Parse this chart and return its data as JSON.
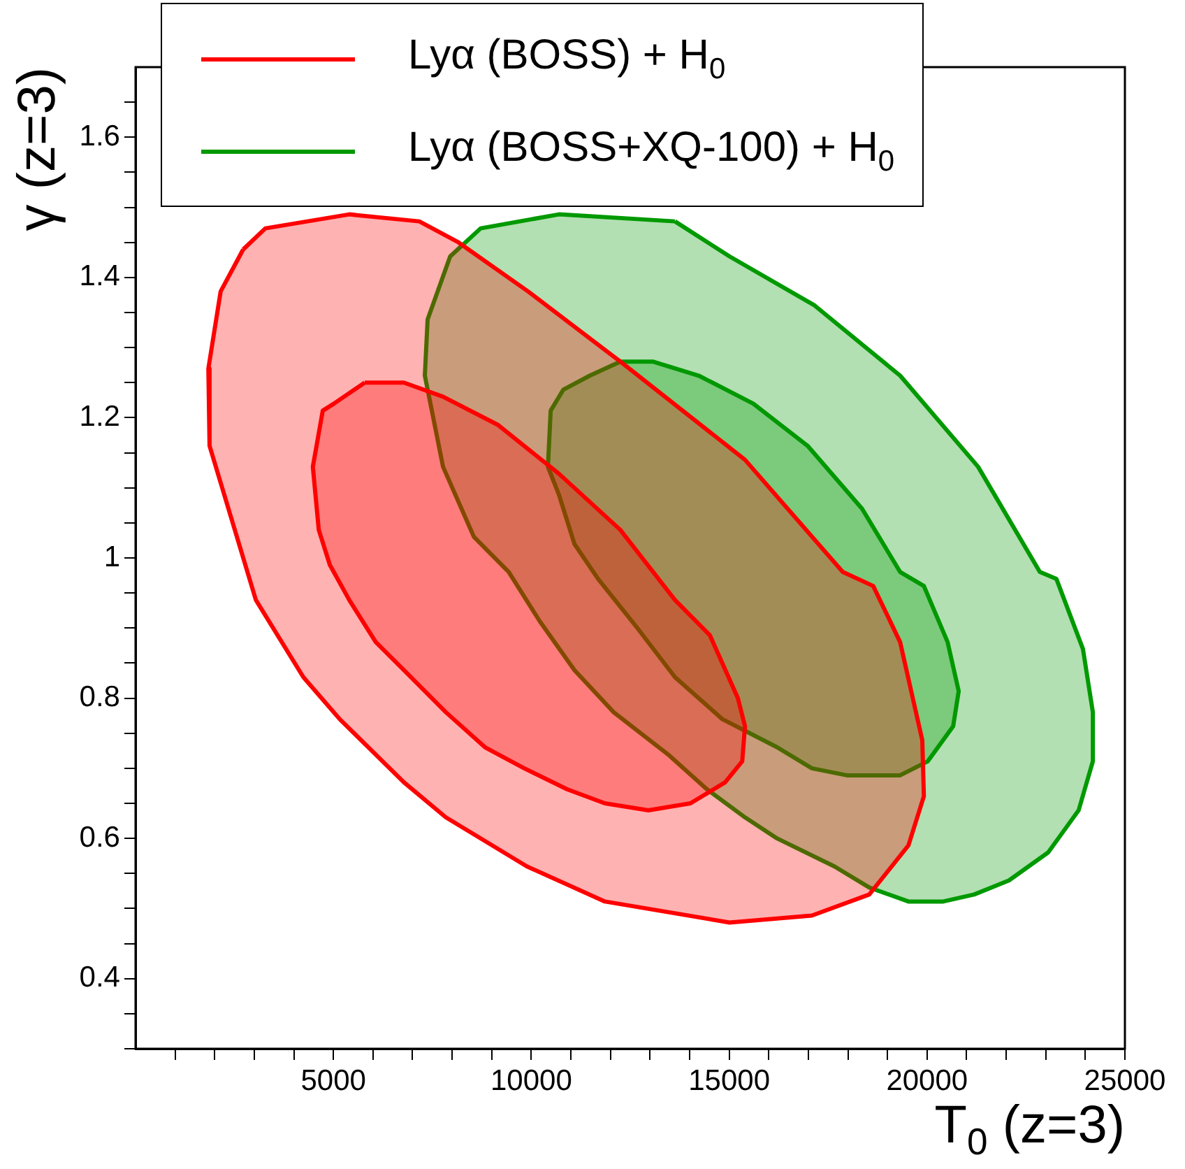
{
  "chart_data": {
    "type": "area",
    "xlabel": "T$_{0}$ (z=3)",
    "ylabel": "γ  (z=3)",
    "xlim": [
      0,
      25000
    ],
    "xticks": [
      {
        "value": 1000,
        "label": null
      },
      {
        "value": 2000,
        "label": null
      },
      {
        "value": 3000,
        "label": null
      },
      {
        "value": 4000,
        "label": null
      },
      5000,
      {
        "value": 6000,
        "label": null
      },
      {
        "value": 7000,
        "label": null
      },
      {
        "value": 8000,
        "label": null
      },
      {
        "value": 9000,
        "label": null
      },
      10000,
      {
        "value": 11000,
        "label": null
      },
      {
        "value": 12000,
        "label": null
      },
      {
        "value": 13000,
        "label": null
      },
      {
        "value": 14000,
        "label": null
      },
      15000,
      {
        "value": 16000,
        "label": null
      },
      {
        "value": 17000,
        "label": null
      },
      {
        "value": 18000,
        "label": null
      },
      {
        "value": 19000,
        "label": null
      },
      20000,
      {
        "value": 21000,
        "label": null
      },
      {
        "value": 22000,
        "label": null
      },
      {
        "value": 23000,
        "label": null
      },
      {
        "value": 24000,
        "label": null
      },
      25000
    ],
    "ylim": [
      0.3,
      1.7
    ],
    "yticks": [
      {
        "value": 0.3,
        "label": null
      },
      {
        "value": 0.35,
        "label": null
      },
      0.4,
      {
        "value": 0.45,
        "label": null
      },
      {
        "value": 0.5,
        "label": null
      },
      {
        "value": 0.55,
        "label": null
      },
      0.6,
      {
        "value": 0.65,
        "label": null
      },
      {
        "value": 0.7,
        "label": null
      },
      {
        "value": 0.75,
        "label": null
      },
      0.8,
      {
        "value": 0.85,
        "label": null
      },
      {
        "value": 0.9,
        "label": null
      },
      {
        "value": 0.95,
        "label": null
      },
      1,
      {
        "value": 1.05,
        "label": null
      },
      {
        "value": 1.1,
        "label": null
      },
      {
        "value": 1.15,
        "label": null
      },
      1.2,
      {
        "value": 1.25,
        "label": null
      },
      {
        "value": 1.3,
        "label": null
      },
      {
        "value": 1.35,
        "label": null
      },
      1.4,
      {
        "value": 1.45,
        "label": null
      },
      {
        "value": 1.5,
        "label": null
      },
      {
        "value": 1.55,
        "label": null
      },
      1.6,
      {
        "value": 1.65,
        "label": null
      }
    ],
    "legend": "top",
    "series": [
      {
        "name": "Lyα (BOSS) + H$_{0}$",
        "color": "#ff0000",
        "x": [
          2720,
          2150,
          1840,
          1870,
          3040,
          4240,
          5160,
          6780,
          7840,
          9890,
          11860,
          15010,
          17090,
          18540,
          19530,
          19920,
          19880,
          19320,
          18640,
          17870,
          15400,
          12250,
          9920,
          8160,
          7170,
          5400,
          3280
        ],
        "values": [
          1.44,
          1.38,
          1.27,
          1.16,
          0.94,
          0.83,
          0.77,
          0.68,
          0.63,
          0.56,
          0.51,
          0.48,
          0.49,
          0.52,
          0.59,
          0.66,
          0.74,
          0.88,
          0.96,
          0.98,
          1.14,
          1.28,
          1.38,
          1.45,
          1.48,
          1.49,
          1.47
        ]
      },
      {
        "color": "#ff0000",
        "x": [
          5790,
          6780,
          7770,
          9150,
          10700,
          12250,
          13630,
          14510,
          15220,
          15400,
          15330,
          14900,
          14020,
          12960,
          11860,
          10910,
          9820,
          8830,
          7840,
          6780,
          6070,
          5400,
          4910,
          4630,
          4480,
          4730,
          5010
        ],
        "values": [
          1.25,
          1.25,
          1.23,
          1.19,
          1.12,
          1.04,
          0.94,
          0.89,
          0.8,
          0.76,
          0.71,
          0.68,
          0.65,
          0.64,
          0.65,
          0.67,
          0.7,
          0.73,
          0.78,
          0.84,
          0.88,
          0.94,
          0.99,
          1.04,
          1.13,
          1.21,
          1.22
        ]
      },
      {
        "name": "Lyα (BOSS+XQ-100) + H$_{0}$",
        "color": "#009900",
        "x": [
          13630,
          15010,
          17160,
          19320,
          21290,
          22850,
          23270,
          23940,
          24190,
          24190,
          23830,
          23060,
          22070,
          21190,
          20410,
          19530,
          18540,
          17660,
          16210,
          15400,
          14440,
          13450,
          12080,
          11090,
          10210,
          9430,
          8550,
          7770,
          7310,
          7380,
          7950,
          8720,
          10700
        ],
        "values": [
          1.48,
          1.43,
          1.36,
          1.26,
          1.13,
          0.98,
          0.97,
          0.87,
          0.78,
          0.71,
          0.64,
          0.58,
          0.54,
          0.52,
          0.51,
          0.51,
          0.53,
          0.56,
          0.6,
          0.63,
          0.67,
          0.72,
          0.78,
          0.84,
          0.91,
          0.98,
          1.03,
          1.13,
          1.26,
          1.34,
          1.43,
          1.47,
          1.49
        ]
      },
      {
        "color": "#009900",
        "x": [
          12250,
          13070,
          14230,
          15610,
          16980,
          18360,
          19320,
          19920,
          20520,
          20800,
          20660,
          20020,
          19320,
          18750,
          17970,
          17090,
          16210,
          14830,
          13630,
          12680,
          11690,
          11090,
          10700,
          10420,
          10490,
          10810,
          11480
        ],
        "values": [
          1.28,
          1.28,
          1.26,
          1.22,
          1.16,
          1.07,
          0.98,
          0.96,
          0.88,
          0.81,
          0.76,
          0.71,
          0.69,
          0.69,
          0.69,
          0.7,
          0.73,
          0.77,
          0.83,
          0.9,
          0.97,
          1.02,
          1.09,
          1.13,
          1.21,
          1.24,
          1.26
        ]
      }
    ]
  }
}
